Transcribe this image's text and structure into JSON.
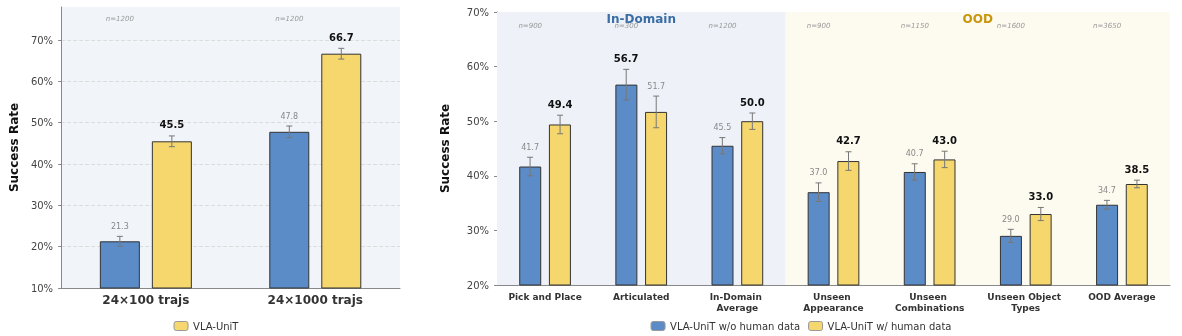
{
  "chart_data": [
    {
      "type": "bar",
      "ylabel": "Success Rate",
      "categories": [
        "24×100 trajs",
        "24×1000 trajs"
      ],
      "series": [
        {
          "color": "#5b8cc8",
          "values": [
            21.3,
            47.8
          ],
          "errors": [
            1.2,
            1.4
          ],
          "value_labels": [
            "21.3",
            "47.8"
          ]
        },
        {
          "name": "VLA-UniT",
          "color": "#f5d76e",
          "values": [
            45.5,
            66.7
          ],
          "errors": [
            1.3,
            1.3
          ],
          "value_labels": [
            "45.5",
            "66.7"
          ]
        }
      ],
      "ylim": [
        10,
        78
      ],
      "yticks": [
        {
          "value": 10,
          "label": "10%"
        },
        {
          "value": 20,
          "label": "20%"
        },
        {
          "value": 30,
          "label": "30%"
        },
        {
          "value": 40,
          "label": "40%"
        },
        {
          "value": 50,
          "label": "50%"
        },
        {
          "value": 60,
          "label": "60%"
        },
        {
          "value": 70,
          "label": "70%"
        }
      ],
      "grid": "y",
      "legend": "bottom",
      "annotations": [
        "n=1200",
        "n=1200"
      ]
    },
    {
      "type": "bar",
      "ylabel": "Success Rate",
      "categories": [
        "Pick and Place",
        "Articulated",
        "In-Domain Average",
        "Unseen Appearance",
        "Unseen Combinations",
        "Unseen Object Types",
        "OOD Average"
      ],
      "series": [
        {
          "name": "VLA-UniT w/o human data",
          "color": "#5b8cc8",
          "values": [
            41.7,
            56.7,
            45.5,
            37.0,
            40.7,
            29.0,
            34.7
          ],
          "errors": [
            1.7,
            2.8,
            1.5,
            1.7,
            1.5,
            1.2,
            0.8
          ],
          "value_labels": [
            "41.7",
            "56.7",
            "45.5",
            "37.0",
            "40.7",
            "29.0",
            "34.7"
          ]
        },
        {
          "name": "VLA-UniT w/ human data",
          "color": "#f5d76e",
          "values": [
            49.4,
            51.7,
            50.0,
            42.7,
            43.0,
            33.0,
            38.5
          ],
          "errors": [
            1.7,
            2.9,
            1.5,
            1.7,
            1.5,
            1.2,
            0.7
          ],
          "value_labels": [
            "49.4",
            "51.7",
            "50.0",
            "42.7",
            "43.0",
            "33.0",
            "38.5"
          ]
        }
      ],
      "ylim": [
        20,
        70
      ],
      "yticks": [
        {
          "value": 20,
          "label": "20%"
        },
        {
          "value": 30,
          "label": "30%"
        },
        {
          "value": 40,
          "label": "40%"
        },
        {
          "value": 50,
          "label": "50%"
        },
        {
          "value": 60,
          "label": "60%"
        },
        {
          "value": 70,
          "label": "70%"
        }
      ],
      "grid": "y",
      "legend": "bottom",
      "bands": [
        {
          "axis": "x",
          "from": "Pick and Place",
          "to": "In-Domain Average",
          "label": "In-Domain",
          "color": "#eef2f8"
        },
        {
          "axis": "x",
          "from": "Unseen Appearance",
          "to": "OOD Average",
          "label": "OOD",
          "color": "#fdfaf0"
        }
      ],
      "annotations": [
        "n=900",
        "n=300",
        "n=1200",
        "n=900",
        "n=1150",
        "n=1600",
        "n=3650"
      ]
    }
  ]
}
